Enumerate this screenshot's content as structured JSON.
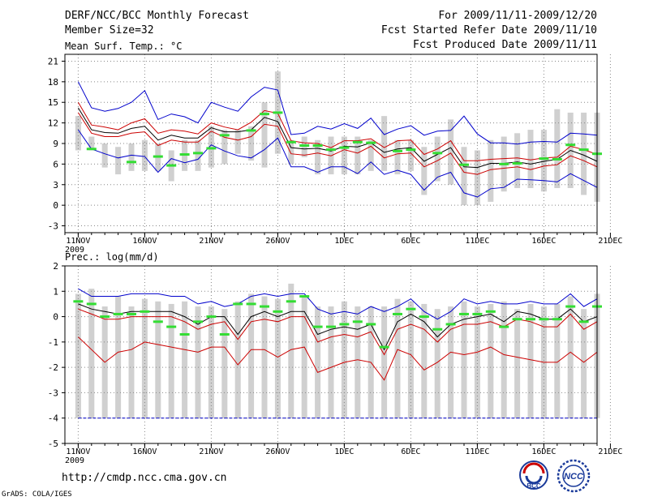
{
  "header": {
    "title": "DERF/NCC/BCC Monthly Forecast",
    "member_size": "Member Size=32",
    "period": "For 2009/11/11-2009/12/20",
    "started": "Fcst Started Refer Date 2009/11/10",
    "produced": "Fcst Produced Date 2009/11/11"
  },
  "footer": {
    "url": "http://cmdp.ncc.cma.gov.cn",
    "grads": "GrADS: COLA/IGES",
    "logo_bcc": "BCC",
    "logo_ncc": "NCC"
  },
  "colors": {
    "envelope": "#0000cc",
    "quartile": "#cc0000",
    "mean": "#000000",
    "observed": "#33dd33",
    "bar": "#d0d0d0",
    "floor": "#0000cc"
  },
  "chart_data": [
    {
      "type": "line",
      "title": "Mean Surf. Temp.: °C",
      "ylim": [
        -4,
        22
      ],
      "yticks": [
        -3,
        0,
        3,
        6,
        9,
        12,
        15,
        18,
        21
      ],
      "xlim": [
        0,
        40
      ],
      "xtick_labels": [
        "11NOV\n2009",
        "16NOV",
        "21NOV",
        "26NOV",
        "1DEC",
        "6DEC",
        "11DEC",
        "16DEC",
        "21DEC"
      ],
      "x": [
        1,
        2,
        3,
        4,
        5,
        6,
        7,
        8,
        9,
        10,
        11,
        12,
        13,
        14,
        15,
        16,
        17,
        18,
        19,
        20,
        21,
        22,
        23,
        24,
        25,
        26,
        27,
        28,
        29,
        30,
        31,
        32,
        33,
        34,
        35,
        36,
        37,
        38,
        39,
        40
      ],
      "bars_low": [
        8,
        8,
        5.5,
        4.5,
        5,
        5,
        5,
        3.5,
        5,
        5,
        5.5,
        6,
        7.5,
        6.5,
        5.5,
        7.5,
        6,
        7,
        4.5,
        4.5,
        4.5,
        4.5,
        5,
        5,
        4.5,
        5,
        1.5,
        3.5,
        3,
        0,
        0,
        0.5,
        2,
        2.5,
        2.5,
        2,
        2.5,
        2.5,
        1.5,
        0.5
      ],
      "bars_high": [
        13,
        10,
        9,
        8.5,
        9,
        9.5,
        9,
        8,
        9.5,
        9.5,
        11.5,
        11,
        11,
        11.5,
        15,
        19.5,
        9.5,
        10,
        9.5,
        10,
        10,
        10,
        9.5,
        13,
        9.5,
        9.5,
        8.5,
        10,
        12.5,
        8.5,
        8,
        9.5,
        10,
        10.5,
        11,
        11,
        14,
        13.5,
        13.5,
        13.5
      ],
      "series": [
        {
          "name": "Ensemble max",
          "color": "#0000cc",
          "values": [
            18,
            14.2,
            13.7,
            14.1,
            15,
            16.7,
            12.5,
            13.3,
            12.9,
            12,
            15,
            14.3,
            13.7,
            15.8,
            17.2,
            16.8,
            10.3,
            10.5,
            11.5,
            11.1,
            11.9,
            11.2,
            12.7,
            10.3,
            11.1,
            11.6,
            10.2,
            10.8,
            10.9,
            13,
            10.4,
            9.1,
            9.1,
            8.9,
            9.2,
            9.3,
            9.2,
            10.5,
            10.4,
            10.2
          ]
        },
        {
          "name": "Upper quartile",
          "color": "#cc0000",
          "values": [
            15,
            11.7,
            11.4,
            11,
            12,
            12.6,
            10.5,
            11,
            10.8,
            10.4,
            12,
            11.4,
            11,
            12.1,
            13.8,
            13.4,
            9.4,
            9.1,
            9,
            8.4,
            9.4,
            9.4,
            9.7,
            8.4,
            9.4,
            9.5,
            7.4,
            8.2,
            9.4,
            6.5,
            6.5,
            6.7,
            6.8,
            6.9,
            6.6,
            6.9,
            7,
            8.6,
            8.1,
            7.4
          ]
        },
        {
          "name": "Ensemble mean",
          "color": "#000000",
          "values": [
            14.2,
            11,
            10.6,
            10.5,
            11.2,
            11.5,
            9.5,
            10.2,
            9.8,
            9.8,
            11.3,
            10.7,
            10.7,
            11,
            12.8,
            12.2,
            8.4,
            8.2,
            8.3,
            7.9,
            8.6,
            8.5,
            9.1,
            7.7,
            8.2,
            8.4,
            6.4,
            7.4,
            8.4,
            5.6,
            5.5,
            6.1,
            6.1,
            6.3,
            6,
            6.4,
            6.7,
            8,
            7.3,
            6.4
          ]
        },
        {
          "name": "Lower quartile",
          "color": "#cc0000",
          "values": [
            13.5,
            10.5,
            10,
            10,
            10.5,
            10.7,
            8.7,
            9.5,
            9.2,
            9.2,
            10.8,
            9.9,
            9.5,
            10,
            11.8,
            11.5,
            7.5,
            7.3,
            7.6,
            7.2,
            8.1,
            7.6,
            8.6,
            6.9,
            7.5,
            7.6,
            5.6,
            6.5,
            7.6,
            4.8,
            4.5,
            5.2,
            5.4,
            5.6,
            5.2,
            5.7,
            5.9,
            7.2,
            6.5,
            5.6
          ]
        },
        {
          "name": "Ensemble min",
          "color": "#0000cc",
          "values": [
            11,
            8.2,
            7.5,
            6.9,
            7.3,
            7.1,
            4.8,
            6.8,
            6.2,
            6.7,
            8.8,
            7.9,
            7.2,
            6.9,
            8.1,
            9.8,
            5.6,
            5.6,
            4.8,
            5.6,
            5.6,
            4.6,
            6.3,
            4.5,
            5.1,
            4.5,
            2.2,
            4.1,
            4.8,
            1.8,
            1.2,
            2.4,
            2.6,
            3.8,
            3.7,
            3.6,
            3.4,
            4.6,
            3.6,
            2.6
          ]
        }
      ],
      "observed": [
        null,
        8.2,
        null,
        null,
        6.3,
        null,
        7.1,
        5.8,
        7.4,
        7.6,
        8.3,
        10.2,
        null,
        10.9,
        13.3,
        13.5,
        9.2,
        8.7,
        8.7,
        8.1,
        8.4,
        9.2,
        9.1,
        null,
        7.9,
        8.1,
        null,
        7.6,
        null,
        5.9,
        null,
        null,
        6,
        6.1,
        null,
        6.8,
        6.7,
        8.8,
        8.1,
        7.5
      ]
    },
    {
      "type": "line",
      "title": "Prec.: log(mm/d)",
      "ylim": [
        -5,
        2
      ],
      "yticks": [
        -5,
        -4,
        -3,
        -2,
        -1,
        0,
        1,
        2
      ],
      "xlim": [
        0,
        40
      ],
      "xtick_labels": [
        "11NOV\n2009",
        "16NOV",
        "21NOV",
        "26NOV",
        "1DEC",
        "6DEC",
        "11DEC",
        "16DEC",
        "21DEC"
      ],
      "x": [
        1,
        2,
        3,
        4,
        5,
        6,
        7,
        8,
        9,
        10,
        11,
        12,
        13,
        14,
        15,
        16,
        17,
        18,
        19,
        20,
        21,
        22,
        23,
        24,
        25,
        26,
        27,
        28,
        29,
        30,
        31,
        32,
        33,
        34,
        35,
        36,
        37,
        38,
        39,
        40
      ],
      "floor_value": -4,
      "bars_low": [
        -4,
        -4,
        -4,
        -4,
        -4,
        -4,
        -4,
        -4,
        -4,
        -4,
        -4,
        -4,
        -4,
        -4,
        -4,
        -4,
        -4,
        -4,
        -4,
        -4,
        -4,
        -4,
        -4,
        -4,
        -4,
        -4,
        -4,
        -4,
        -4,
        -4,
        -4,
        -4,
        -4,
        -4,
        -4,
        -4,
        -4,
        -4,
        -4,
        -4
      ],
      "bars_high": [
        0.9,
        1.1,
        0.4,
        0.8,
        0.4,
        0.7,
        0.6,
        0.5,
        0.6,
        0.4,
        0.4,
        0.3,
        0.6,
        0.9,
        0.8,
        0.7,
        1.3,
        0.8,
        0.4,
        0.4,
        0.6,
        0.4,
        0.4,
        0.4,
        0.7,
        0.6,
        0.5,
        0.3,
        0.4,
        0.6,
        0.4,
        0.5,
        0.6,
        0.3,
        0.5,
        0.4,
        0.5,
        0.8,
        0.3,
        0.9
      ],
      "series": [
        {
          "name": "Ensemble max",
          "color": "#0000cc",
          "values": [
            1.1,
            0.8,
            0.8,
            0.8,
            0.9,
            0.9,
            0.9,
            0.8,
            0.8,
            0.5,
            0.6,
            0.4,
            0.5,
            0.8,
            0.9,
            0.8,
            0.9,
            0.9,
            0.3,
            0.1,
            0.2,
            0.1,
            0.4,
            0.2,
            0.4,
            0.7,
            0.2,
            -0.1,
            0.2,
            0.7,
            0.5,
            0.6,
            0.5,
            0.5,
            0.6,
            0.5,
            0.5,
            0.9,
            0.4,
            0.7
          ]
        },
        {
          "name": "Ensemble mean",
          "color": "#000000",
          "values": [
            0.5,
            0.3,
            0.2,
            0.1,
            0.2,
            0.2,
            0.2,
            0.2,
            0,
            -0.3,
            0,
            0,
            -0.7,
            0,
            0.2,
            0,
            0.2,
            0.2,
            -0.7,
            -0.5,
            -0.4,
            -0.5,
            -0.3,
            -1.3,
            -0.2,
            0.1,
            -0.2,
            -0.8,
            -0.3,
            -0.1,
            0,
            0.1,
            -0.2,
            0.2,
            0.1,
            -0.1,
            -0.1,
            0.3,
            -0.2,
            0
          ]
        },
        {
          "name": "Upper quartile",
          "color": "#cc0000",
          "values": [
            0.3,
            0.1,
            -0.1,
            -0.1,
            0,
            0,
            0,
            0,
            -0.2,
            -0.5,
            -0.3,
            -0.2,
            -0.9,
            -0.2,
            -0.1,
            -0.2,
            0,
            0,
            -1,
            -0.8,
            -0.7,
            -0.8,
            -0.6,
            -1.5,
            -0.5,
            -0.3,
            -0.5,
            -1,
            -0.5,
            -0.3,
            -0.3,
            -0.2,
            -0.4,
            -0.1,
            -0.2,
            -0.4,
            -0.4,
            0.1,
            -0.5,
            -0.2
          ]
        },
        {
          "name": "Lower quartile",
          "color": "#cc0000",
          "values": [
            -0.8,
            -1.3,
            -1.8,
            -1.4,
            -1.3,
            -1,
            -1.1,
            -1.2,
            -1.3,
            -1.4,
            -1.2,
            -1.2,
            -1.9,
            -1.3,
            -1.3,
            -1.6,
            -1.3,
            -1.2,
            -2.2,
            -2,
            -1.8,
            -1.7,
            -1.8,
            -2.5,
            -1.3,
            -1.5,
            -2.1,
            -1.8,
            -1.4,
            -1.5,
            -1.4,
            -1.2,
            -1.5,
            -1.6,
            -1.7,
            -1.8,
            -1.8,
            -1.4,
            -1.8,
            -1.4
          ]
        }
      ],
      "observed": [
        0.6,
        0.5,
        0,
        0.1,
        0.1,
        0.2,
        -0.2,
        -0.4,
        -0.7,
        -0.2,
        0,
        -0.7,
        0.5,
        0.5,
        0.4,
        0.2,
        0.6,
        0.8,
        -0.4,
        -0.4,
        -0.3,
        -0.2,
        -0.3,
        -1.2,
        0.1,
        0.3,
        0,
        -0.5,
        -0.3,
        0.1,
        0.1,
        0.2,
        -0.4,
        -0.1,
        -0.1,
        -0.1,
        -0.1,
        0.4,
        -0.2,
        0.4
      ]
    }
  ]
}
